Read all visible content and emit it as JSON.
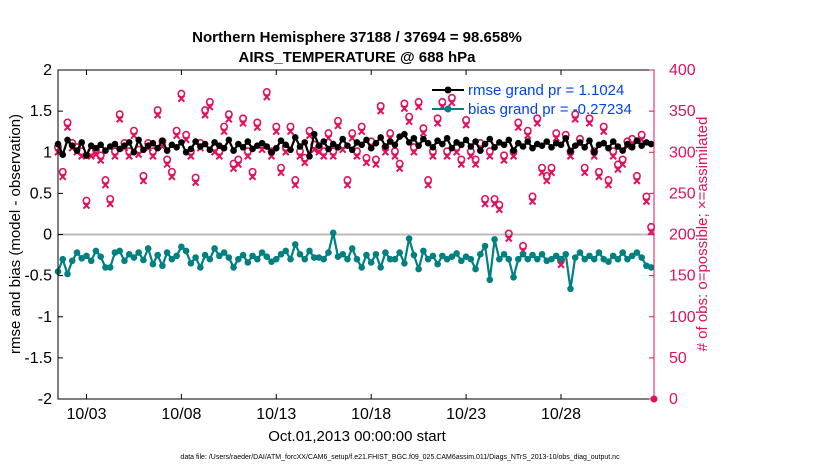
{
  "chart_data": {
    "type": "line",
    "title": "Northern Hemisphere 37188 / 37694 = 98.658%",
    "subtitle": "AIRS_TEMPERATURE @ 688 hPa",
    "xlabel": "Oct.01,2013 00:00:00 start",
    "ylabel": "rmse and bias (model - observation)",
    "y2label": "# of obs: o=possible; ×=assimilated",
    "footnote": "data file: /Users/raeder/DAI/ATM_forcXX/CAM6_setup/f.e21.FHIST_BGC.f09_025.CAM6assim.011/Diags_NTrS_2013-10/obs_diag_output.nc",
    "xlim": [
      1.5,
      32.9
    ],
    "ylim": [
      -2,
      2
    ],
    "y2lim": [
      0,
      400
    ],
    "x_ticks": [
      3,
      8,
      13,
      18,
      23,
      28
    ],
    "x_tick_labels": [
      "10/03",
      "10/08",
      "10/13",
      "10/18",
      "10/23",
      "10/28"
    ],
    "y_ticks": [
      -2,
      -1.5,
      -1,
      -0.5,
      0,
      0.5,
      1,
      1.5,
      2
    ],
    "y_tick_labels": [
      "-2",
      "-1.5",
      "-1",
      "-0.5",
      "0",
      "0.5",
      "1",
      "1.5",
      "2"
    ],
    "y2_ticks": [
      0,
      50,
      100,
      150,
      200,
      250,
      300,
      350,
      400
    ],
    "y2_tick_labels": [
      "0",
      "50",
      "100",
      "150",
      "200",
      "250",
      "300",
      "350",
      "400"
    ],
    "zero_line": 0,
    "legend_position": "top-right",
    "colors": {
      "rmse": "#000000",
      "bias": "#008080",
      "obs": "#e0115f",
      "zero": "#bbbbbb"
    },
    "legend": [
      {
        "series": "rmse",
        "label": "rmse grand pr = 1.1024"
      },
      {
        "series": "bias",
        "label": "bias grand pr = -0.27234"
      }
    ],
    "x": [
      1.5,
      1.75,
      2.0,
      2.25,
      2.5,
      2.75,
      3.0,
      3.25,
      3.5,
      3.75,
      4.0,
      4.25,
      4.5,
      4.75,
      5.0,
      5.25,
      5.5,
      5.75,
      6.0,
      6.25,
      6.5,
      6.75,
      7.0,
      7.25,
      7.5,
      7.75,
      8.0,
      8.25,
      8.5,
      8.75,
      9.0,
      9.25,
      9.5,
      9.75,
      10.0,
      10.25,
      10.5,
      10.75,
      11.0,
      11.25,
      11.5,
      11.75,
      12.0,
      12.25,
      12.5,
      12.75,
      13.0,
      13.25,
      13.5,
      13.75,
      14.0,
      14.25,
      14.5,
      14.75,
      15.0,
      15.25,
      15.5,
      15.75,
      16.0,
      16.25,
      16.5,
      16.75,
      17.0,
      17.25,
      17.5,
      17.75,
      18.0,
      18.25,
      18.5,
      18.75,
      19.0,
      19.25,
      19.5,
      19.75,
      20.0,
      20.25,
      20.5,
      20.75,
      21.0,
      21.25,
      21.5,
      21.75,
      22.0,
      22.25,
      22.5,
      22.75,
      23.0,
      23.25,
      23.5,
      23.75,
      24.0,
      24.25,
      24.5,
      24.75,
      25.0,
      25.25,
      25.5,
      25.75,
      26.0,
      26.25,
      26.5,
      26.75,
      27.0,
      27.25,
      27.5,
      27.75,
      28.0,
      28.25,
      28.5,
      28.75,
      29.0,
      29.25,
      29.5,
      29.75,
      30.0,
      30.25,
      30.5,
      30.75,
      31.0,
      31.25,
      31.5,
      31.75,
      32.0,
      32.25,
      32.5,
      32.75
    ],
    "series": [
      {
        "name": "rmse",
        "marker": "filled-circle",
        "values": [
          1.1,
          0.97,
          1.15,
          1.08,
          1.02,
          1.12,
          0.96,
          1.08,
          1.05,
          1.09,
          1.02,
          1.07,
          1.1,
          1.04,
          1.08,
          1.12,
          1.0,
          1.15,
          1.03,
          1.08,
          1.11,
          1.05,
          1.14,
          1.02,
          1.09,
          1.06,
          1.12,
          1.0,
          1.04,
          1.13,
          1.07,
          1.1,
          1.03,
          1.12,
          1.08,
          1.05,
          1.15,
          1.02,
          1.1,
          1.06,
          1.13,
          1.04,
          1.08,
          1.11,
          1.07,
          1.0,
          1.05,
          1.14,
          1.09,
          1.03,
          1.18,
          1.07,
          1.12,
          0.95,
          1.22,
          1.08,
          1.13,
          1.04,
          1.1,
          1.06,
          1.16,
          1.08,
          1.03,
          1.12,
          1.09,
          1.15,
          1.05,
          1.11,
          1.18,
          1.07,
          1.13,
          1.09,
          1.19,
          1.22,
          1.12,
          1.17,
          1.08,
          1.16,
          1.11,
          1.06,
          1.14,
          1.1,
          1.17,
          1.05,
          1.12,
          1.09,
          1.15,
          1.07,
          1.13,
          1.02,
          1.1,
          1.16,
          1.06,
          1.12,
          1.09,
          1.15,
          1.02,
          1.11,
          1.07,
          1.13,
          1.05,
          1.1,
          1.08,
          1.13,
          1.06,
          1.11,
          1.09,
          1.17,
          1.01,
          1.08,
          1.12,
          1.06,
          1.14,
          1.0,
          1.09,
          1.11,
          1.05,
          1.13,
          1.07,
          1.02,
          1.1,
          1.06,
          1.14,
          1.08,
          1.12,
          1.1
        ]
      },
      {
        "name": "bias",
        "marker": "filled-circle",
        "values": [
          -0.45,
          -0.3,
          -0.48,
          -0.32,
          -0.22,
          -0.29,
          -0.26,
          -0.32,
          -0.2,
          -0.27,
          -0.4,
          -0.4,
          -0.22,
          -0.2,
          -0.32,
          -0.24,
          -0.28,
          -0.22,
          -0.31,
          -0.17,
          -0.36,
          -0.25,
          -0.38,
          -0.22,
          -0.3,
          -0.26,
          -0.15,
          -0.2,
          -0.35,
          -0.28,
          -0.4,
          -0.25,
          -0.3,
          -0.17,
          -0.26,
          -0.22,
          -0.28,
          -0.4,
          -0.3,
          -0.25,
          -0.34,
          -0.26,
          -0.3,
          -0.22,
          -0.27,
          -0.33,
          -0.3,
          -0.24,
          -0.2,
          -0.3,
          -0.12,
          -0.24,
          -0.3,
          -0.2,
          -0.28,
          -0.28,
          -0.3,
          -0.22,
          0.02,
          -0.27,
          -0.24,
          -0.3,
          -0.17,
          -0.3,
          -0.4,
          -0.25,
          -0.34,
          -0.24,
          -0.4,
          -0.22,
          -0.3,
          -0.3,
          -0.22,
          -0.35,
          -0.05,
          -0.25,
          -0.42,
          -0.2,
          -0.3,
          -0.26,
          -0.36,
          -0.26,
          -0.3,
          -0.27,
          -0.23,
          -0.32,
          -0.27,
          -0.3,
          -0.42,
          -0.24,
          -0.14,
          -0.55,
          -0.06,
          -0.3,
          -0.24,
          -0.3,
          -0.52,
          -0.3,
          -0.24,
          -0.3,
          -0.25,
          -0.3,
          -0.24,
          -0.32,
          -0.3,
          -0.26,
          -0.3,
          -0.24,
          -0.66,
          -0.28,
          -0.22,
          -0.3,
          -0.26,
          -0.3,
          -0.22,
          -0.3,
          -0.33,
          -0.26,
          -0.3,
          -0.22,
          -0.3,
          -0.26,
          -0.22,
          -0.28,
          -0.38,
          -0.4
        ]
      }
    ],
    "obs_x": [
      1.5,
      1.75,
      2.0,
      2.25,
      2.5,
      2.75,
      3.0,
      3.25,
      3.5,
      3.75,
      4.0,
      4.25,
      4.5,
      4.75,
      5.0,
      5.25,
      5.5,
      5.75,
      6.0,
      6.25,
      6.5,
      6.75,
      7.0,
      7.25,
      7.5,
      7.75,
      8.0,
      8.25,
      8.5,
      8.75,
      9.0,
      9.25,
      9.5,
      9.75,
      10.0,
      10.25,
      10.5,
      10.75,
      11.0,
      11.25,
      11.5,
      11.75,
      12.0,
      12.25,
      12.5,
      12.75,
      13.0,
      13.25,
      13.5,
      13.75,
      14.0,
      14.25,
      14.5,
      14.75,
      15.0,
      15.25,
      15.5,
      15.75,
      16.0,
      16.25,
      16.5,
      16.75,
      17.0,
      17.25,
      17.5,
      17.75,
      18.0,
      18.25,
      18.5,
      18.75,
      19.0,
      19.25,
      19.5,
      19.75,
      20.0,
      20.25,
      20.5,
      20.75,
      21.0,
      21.25,
      21.5,
      21.75,
      22.0,
      22.25,
      22.5,
      22.75,
      23.0,
      23.25,
      23.5,
      23.75,
      24.0,
      24.25,
      24.5,
      24.75,
      25.0,
      25.25,
      25.5,
      25.75,
      26.0,
      26.25,
      26.5,
      26.75,
      27.0,
      27.25,
      27.5,
      27.75,
      28.0,
      28.25,
      28.5,
      28.75,
      29.0,
      29.25,
      29.5,
      29.75,
      30.0,
      30.25,
      30.5,
      30.75,
      31.0,
      31.25,
      31.5,
      31.75,
      32.0,
      32.25,
      32.5,
      32.75
    ],
    "obs_possible": [
      305,
      275,
      335,
      310,
      305,
      300,
      240,
      300,
      302,
      295,
      265,
      242,
      300,
      345,
      310,
      300,
      325,
      302,
      270,
      310,
      300,
      350,
      312,
      290,
      275,
      325,
      370,
      320,
      300,
      268,
      310,
      350,
      360,
      305,
      300,
      330,
      345,
      285,
      290,
      340,
      300,
      275,
      335,
      308,
      372,
      300,
      330,
      280,
      305,
      330,
      265,
      300,
      292,
      325,
      308,
      305,
      300,
      322,
      300,
      337,
      308,
      265,
      322,
      300,
      330,
      292,
      312,
      290,
      355,
      305,
      322,
      300,
      285,
      358,
      342,
      305,
      360,
      328,
      265,
      300,
      340,
      360,
      300,
      365,
      305,
      290,
      338,
      300,
      290,
      310,
      242,
      300,
      242,
      235,
      295,
      200,
      300,
      335,
      185,
      325,
      245,
      340,
      280,
      270,
      280,
      322,
      168,
      320,
      300,
      345,
      315,
      280,
      340,
      300,
      275,
      330,
      265,
      300,
      284,
      290,
      312,
      315,
      270,
      320,
      245,
      208
    ]
  }
}
